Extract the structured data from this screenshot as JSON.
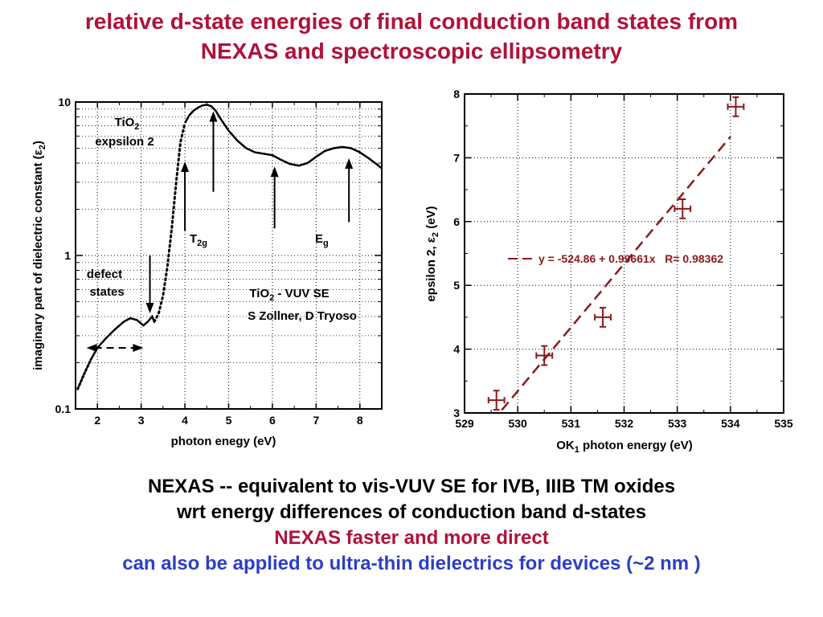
{
  "colors": {
    "title": "#b0123a",
    "body_text": "#000000",
    "emphasis_red": "#b0123a",
    "emphasis_blue": "#2d3fc4",
    "fit_line": "#8b1a1a",
    "markers": "#8b1a1a"
  },
  "title": {
    "line1": "relative d-state energies of final conduction band states from",
    "line2": "NEXAS  and spectroscopic ellipsometry"
  },
  "bottom_text": {
    "line1": "NEXAS -- equivalent to vis-VUV SE for IVB, IIIB TM oxides",
    "line2": "wrt energy differences of conduction band d-states",
    "line3": "NEXAS faster and more direct",
    "line4": "can also be applied to ultra-thin dielectrics for devices (~2 nm )"
  },
  "chart_data": [
    {
      "type": "line",
      "xlabel": "photon enegy (eV)",
      "ylabel": "imaginary part of dielectric constant (ε2)",
      "ylabel_main": "imaginary part of dielectric constant (",
      "ylabel_symbol": "ε",
      "ylabel_sub": "2",
      "ylabel_close": ")",
      "xlim": [
        1.5,
        8.5
      ],
      "ylim": [
        0.1,
        10
      ],
      "yscale": "log",
      "grid": true,
      "xticks": [
        2,
        3,
        4,
        5,
        6,
        7,
        8
      ],
      "yticks": [
        {
          "value": 0.1,
          "label": "0.1"
        },
        {
          "value": 1,
          "label": "1"
        },
        {
          "value": 10,
          "label": "10"
        }
      ],
      "series": [
        {
          "x": [
            1.55,
            1.7,
            1.85,
            2.0,
            2.2,
            2.4,
            2.6,
            2.75,
            2.9,
            3.0,
            3.05,
            3.15,
            3.25,
            3.3,
            3.4,
            3.5,
            3.6,
            3.7,
            3.8,
            3.9,
            4.0,
            4.1,
            4.2,
            4.3,
            4.4,
            4.5,
            4.6,
            4.7,
            4.8,
            5.0,
            5.2,
            5.4,
            5.6,
            5.8,
            6.0,
            6.2,
            6.4,
            6.6,
            6.8,
            7.0,
            7.2,
            7.4,
            7.6,
            7.8,
            8.0,
            8.2,
            8.4,
            8.5
          ],
          "values": [
            0.135,
            0.17,
            0.21,
            0.25,
            0.29,
            0.33,
            0.37,
            0.39,
            0.38,
            0.36,
            0.35,
            0.37,
            0.4,
            0.37,
            0.42,
            0.55,
            0.85,
            1.5,
            3.0,
            5.5,
            7.3,
            8.2,
            8.8,
            9.2,
            9.5,
            9.6,
            9.4,
            8.8,
            7.9,
            6.5,
            5.6,
            5.0,
            4.7,
            4.6,
            4.5,
            4.2,
            3.95,
            3.85,
            4.0,
            4.4,
            4.8,
            5.0,
            5.1,
            5.0,
            4.7,
            4.3,
            3.9,
            3.7
          ]
        }
      ],
      "annotations": {
        "material_main": "TiO",
        "material_sub": "2",
        "description": "expsilon 2",
        "t2g_main": "T",
        "t2g_sub": "2g",
        "eg_main": "E",
        "eg_sub": "g",
        "defect_line1": "defect",
        "defect_line2": "states",
        "source_main": "TiO",
        "source_sub": "2",
        "source_rest": " - VUV SE",
        "authors": "S Zollner, D Tryoso"
      },
      "arrows": [
        {
          "x": 4.0,
          "from": 1.45,
          "to": 4.1
        },
        {
          "x": 4.65,
          "from": 2.6,
          "to": 8.7
        },
        {
          "x": 6.05,
          "from": 1.5,
          "to": 3.8
        },
        {
          "x": 7.75,
          "from": 1.65,
          "to": 4.3
        },
        {
          "x": 3.2,
          "from": 1.0,
          "to": 0.42
        }
      ],
      "range_arrow": {
        "x1": 1.75,
        "x2": 3.05,
        "y": 0.25
      }
    },
    {
      "type": "scatter",
      "xlabel": "OK1 photon energy (eV)",
      "xlabel_main": "OK",
      "xlabel_sub": "1",
      "xlabel_rest": " photon energy (eV)",
      "ylabel": "epsilon 2, ε2 (eV)",
      "ylabel_main": "epsilon 2, ",
      "ylabel_symbol": "ε",
      "ylabel_sub": "2",
      "ylabel_close": " (eV)",
      "xlim": [
        529,
        535
      ],
      "ylim": [
        3,
        8
      ],
      "grid": true,
      "xticks": [
        529,
        530,
        531,
        532,
        533,
        534,
        535
      ],
      "yticks": [
        3,
        4,
        5,
        6,
        7,
        8
      ],
      "points": [
        {
          "x": 529.6,
          "y": 3.2,
          "xerr": 0.15,
          "yerr": 0.15
        },
        {
          "x": 530.5,
          "y": 3.9,
          "xerr": 0.15,
          "yerr": 0.15
        },
        {
          "x": 531.6,
          "y": 4.5,
          "xerr": 0.15,
          "yerr": 0.15
        },
        {
          "x": 533.1,
          "y": 6.2,
          "xerr": 0.15,
          "yerr": 0.15
        },
        {
          "x": 534.1,
          "y": 7.8,
          "xerr": 0.15,
          "yerr": 0.15
        }
      ],
      "fit": {
        "intercept": -524.86,
        "slope": 0.99661,
        "R": 0.98362,
        "x_range": [
          529.7,
          534.0
        ],
        "legend": "y = -524.86 + 0.99661x   R= 0.98362"
      }
    }
  ]
}
